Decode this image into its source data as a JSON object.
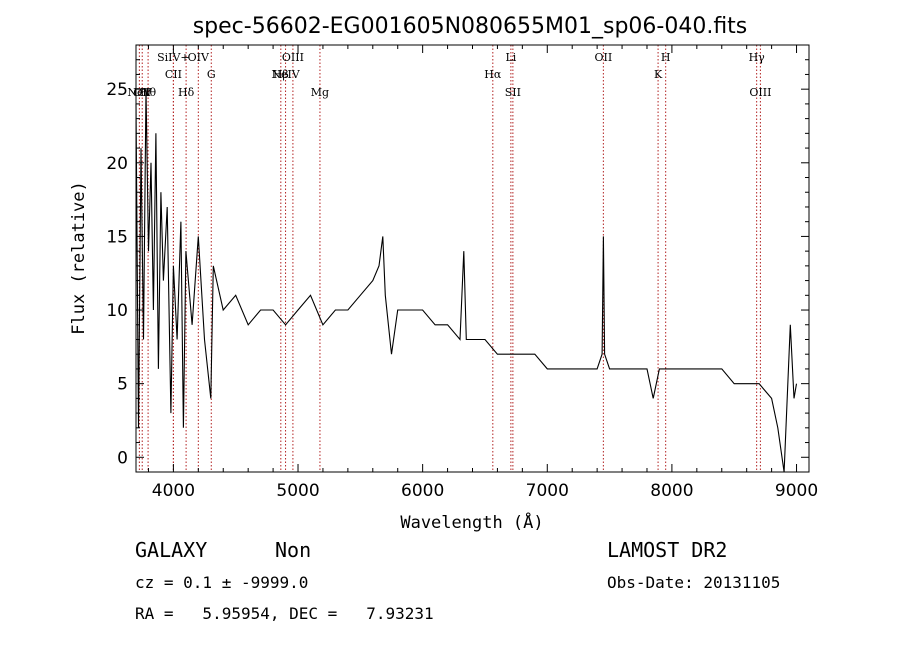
{
  "chart_data": {
    "type": "line",
    "title": "spec-56602-EG001605N080655M01_sp06-040.fits",
    "xlabel": "Wavelength (Å)",
    "ylabel": "Flux (relative)",
    "xlim": [
      3700,
      9100
    ],
    "ylim": [
      -1,
      28
    ],
    "x_ticks": [
      4000,
      5000,
      6000,
      7000,
      8000,
      9000
    ],
    "y_ticks": [
      0,
      5,
      10,
      15,
      20,
      25
    ],
    "grid": false,
    "line_color": "#000000",
    "marker_color": "#b22222",
    "spectral_lines": [
      {
        "wavelength": 3727,
        "row": 3,
        "label": "NeV"
      },
      {
        "wavelength": 3750,
        "row": 3,
        "label": "OII"
      },
      {
        "wavelength": 3797,
        "row": 3,
        "label": "Hθ"
      },
      {
        "wavelength": 4000,
        "row": 1,
        "label": "SiIV+"
      },
      {
        "wavelength": 4000,
        "row": 2,
        "label": "CII"
      },
      {
        "wavelength": 4102,
        "row": 3,
        "label": "Hδ"
      },
      {
        "wavelength": 4200,
        "row": 1,
        "label": "OIV"
      },
      {
        "wavelength": 4304,
        "row": 2,
        "label": "G"
      },
      {
        "wavelength": 4862,
        "row": 2,
        "label": "Hβ"
      },
      {
        "wavelength": 4900,
        "row": 2,
        "label": "NeIV"
      },
      {
        "wavelength": 4959,
        "row": 1,
        "label": "OIII"
      },
      {
        "wavelength": 5176,
        "row": 3,
        "label": "Mg"
      },
      {
        "wavelength": 6563,
        "row": 2,
        "label": "Hα"
      },
      {
        "wavelength": 6708,
        "row": 1,
        "label": "Li"
      },
      {
        "wavelength": 6724,
        "row": 3,
        "label": "SII"
      },
      {
        "wavelength": 7450,
        "row": 1,
        "label": "OII"
      },
      {
        "wavelength": 7889,
        "row": 2,
        "label": "K"
      },
      {
        "wavelength": 7950,
        "row": 1,
        "label": "H"
      },
      {
        "wavelength": 8680,
        "row": 1,
        "label": "Hγ"
      },
      {
        "wavelength": 8710,
        "row": 3,
        "label": "OIII"
      }
    ],
    "series": [
      {
        "anchors": [
          [
            3700,
            24
          ],
          [
            3720,
            2
          ],
          [
            3740,
            21
          ],
          [
            3760,
            8
          ],
          [
            3780,
            25
          ],
          [
            3800,
            14
          ],
          [
            3820,
            20
          ],
          [
            3840,
            10
          ],
          [
            3860,
            22
          ],
          [
            3880,
            6
          ],
          [
            3900,
            18
          ],
          [
            3920,
            12
          ],
          [
            3950,
            17
          ],
          [
            3980,
            3
          ],
          [
            4000,
            13
          ],
          [
            4030,
            8
          ],
          [
            4060,
            16
          ],
          [
            4080,
            2
          ],
          [
            4100,
            14
          ],
          [
            4150,
            9
          ],
          [
            4200,
            15
          ],
          [
            4250,
            8
          ],
          [
            4300,
            4
          ],
          [
            4320,
            13
          ],
          [
            4400,
            10
          ],
          [
            4500,
            11
          ],
          [
            4600,
            9
          ],
          [
            4700,
            10
          ],
          [
            4800,
            10
          ],
          [
            4900,
            9
          ],
          [
            5000,
            10
          ],
          [
            5100,
            11
          ],
          [
            5200,
            9
          ],
          [
            5300,
            10
          ],
          [
            5400,
            10
          ],
          [
            5500,
            11
          ],
          [
            5600,
            12
          ],
          [
            5650,
            13
          ],
          [
            5680,
            15
          ],
          [
            5700,
            11
          ],
          [
            5750,
            7
          ],
          [
            5800,
            10
          ],
          [
            5900,
            10
          ],
          [
            6000,
            10
          ],
          [
            6100,
            9
          ],
          [
            6200,
            9
          ],
          [
            6300,
            8
          ],
          [
            6330,
            14
          ],
          [
            6350,
            8
          ],
          [
            6400,
            8
          ],
          [
            6500,
            8
          ],
          [
            6600,
            7
          ],
          [
            6700,
            7
          ],
          [
            6800,
            7
          ],
          [
            6900,
            7
          ],
          [
            7000,
            6
          ],
          [
            7100,
            6
          ],
          [
            7200,
            6
          ],
          [
            7300,
            6
          ],
          [
            7400,
            6
          ],
          [
            7440,
            7
          ],
          [
            7450,
            15
          ],
          [
            7460,
            7
          ],
          [
            7500,
            6
          ],
          [
            7600,
            6
          ],
          [
            7700,
            6
          ],
          [
            7800,
            6
          ],
          [
            7850,
            4
          ],
          [
            7900,
            6
          ],
          [
            8000,
            6
          ],
          [
            8100,
            6
          ],
          [
            8200,
            6
          ],
          [
            8300,
            6
          ],
          [
            8400,
            6
          ],
          [
            8500,
            5
          ],
          [
            8600,
            5
          ],
          [
            8700,
            5
          ],
          [
            8800,
            4
          ],
          [
            8850,
            2
          ],
          [
            8900,
            -1
          ],
          [
            8950,
            9
          ],
          [
            8980,
            4
          ],
          [
            9000,
            5
          ]
        ]
      }
    ]
  },
  "footer": {
    "class_label": "GALAXY",
    "subclass_label": "Non",
    "survey_label": "LAMOST DR2",
    "redshift_text": "cz = 0.1 ± -9999.0",
    "obs_date_text": "Obs-Date: 20131105",
    "coords_text": "RA =   5.95954, DEC =   7.93231"
  }
}
